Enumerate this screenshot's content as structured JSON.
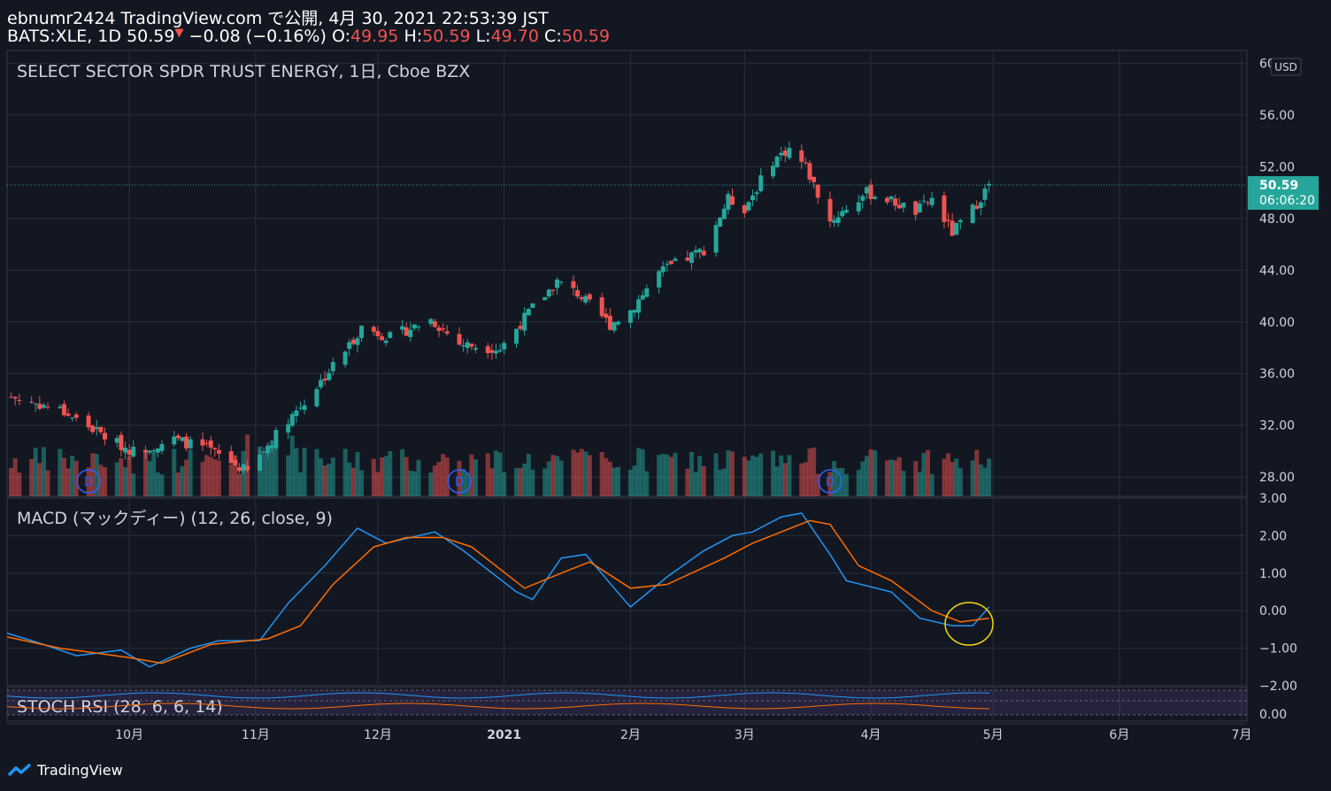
{
  "header": {
    "line1": "ebnumr2424 TradingView.com で公開, 4月 30, 2021 22:53:39 JST",
    "symbol": "BATS:XLE, 1D",
    "last": "50.59",
    "change": "−0.08 (−0.16%)",
    "o_label": "O:",
    "o": "49.95",
    "h_label": "H:",
    "h": "50.59",
    "l_label": "L:",
    "l": "49.70",
    "c_label": "C:",
    "c": "50.59"
  },
  "footer": {
    "brand": "TradingView"
  },
  "colors": {
    "background": "#131722",
    "up": "#26a69a",
    "down": "#ef5350",
    "macd": "#2196f3",
    "signal": "#ff6d00",
    "stoch_k": "#2196f3",
    "stoch_d": "#ff6d00"
  },
  "chart_data": [
    {
      "type": "candlestick",
      "title": "SELECT SECTOR SPDR TRUST ENERGY, 1日, Cboe BZX",
      "currency": "USD",
      "ylim": [
        26.5,
        61
      ],
      "y_ticks": [
        "60.00",
        "56.00",
        "52.00",
        "48.00",
        "44.00",
        "40.00",
        "36.00",
        "32.00",
        "28.00"
      ],
      "x_ticks": [
        "10月",
        "11月",
        "12月",
        "2021",
        "2月",
        "3月",
        "4月",
        "5月",
        "6月",
        "7月"
      ],
      "last_price_label": "50.59",
      "countdown_label": "06:06:20",
      "dividend_markers": [
        "D",
        "D",
        "D"
      ],
      "price_anchors": [
        [
          "2020-09-02",
          34.2
        ],
        [
          "2020-09-14",
          33.2
        ],
        [
          "2020-09-28",
          30.6
        ],
        [
          "2020-10-02",
          30.0
        ],
        [
          "2020-10-12",
          30.9
        ],
        [
          "2020-10-20",
          30.2
        ],
        [
          "2020-10-30",
          28.4
        ],
        [
          "2020-11-09",
          32.5
        ],
        [
          "2020-11-13",
          33.8
        ],
        [
          "2020-11-24",
          38.2
        ],
        [
          "2020-11-27",
          39.6
        ],
        [
          "2020-12-04",
          38.8
        ],
        [
          "2020-12-14",
          40.2
        ],
        [
          "2020-12-21",
          38.3
        ],
        [
          "2020-12-31",
          37.9
        ],
        [
          "2021-01-08",
          41.1
        ],
        [
          "2021-01-14",
          43.1
        ],
        [
          "2021-01-19",
          42.2
        ],
        [
          "2021-01-27",
          39.8
        ],
        [
          "2021-02-01",
          40.9
        ],
        [
          "2021-02-08",
          43.8
        ],
        [
          "2021-02-19",
          45.6
        ],
        [
          "2021-02-25",
          49.5
        ],
        [
          "2021-03-01",
          48.8
        ],
        [
          "2021-03-08",
          52.5
        ],
        [
          "2021-03-12",
          53.4
        ],
        [
          "2021-03-16",
          52.0
        ],
        [
          "2021-03-22",
          47.8
        ],
        [
          "2021-03-31",
          50.0
        ],
        [
          "2021-04-05",
          49.5
        ],
        [
          "2021-04-12",
          48.5
        ],
        [
          "2021-04-16",
          49.5
        ],
        [
          "2021-04-21",
          46.9
        ],
        [
          "2021-04-26",
          48.7
        ],
        [
          "2021-04-30",
          50.59
        ]
      ]
    },
    {
      "type": "line",
      "title": "MACD (マックディー) (12, 26, close, 9)",
      "ylim": [
        -2.0,
        3.0
      ],
      "y_ticks": [
        "3.00",
        "2.00",
        "1.00",
        "0.00",
        "−1.00",
        "−2.00"
      ],
      "series": [
        {
          "name": "MACD",
          "color": "#2196f3",
          "values": [
            [
              "2020-09-01",
              -0.6
            ],
            [
              "2020-09-10",
              -0.9
            ],
            [
              "2020-09-18",
              -1.2
            ],
            [
              "2020-09-29",
              -1.05
            ],
            [
              "2020-10-06",
              -1.5
            ],
            [
              "2020-10-16",
              -1.0
            ],
            [
              "2020-10-23",
              -0.8
            ],
            [
              "2020-11-02",
              -0.8
            ],
            [
              "2020-11-09",
              0.2
            ],
            [
              "2020-11-18",
              1.2
            ],
            [
              "2020-11-26",
              2.2
            ],
            [
              "2020-12-03",
              1.8
            ],
            [
              "2020-12-15",
              2.1
            ],
            [
              "2020-12-22",
              1.6
            ],
            [
              "2021-01-04",
              0.5
            ],
            [
              "2021-01-08",
              0.3
            ],
            [
              "2021-01-15",
              1.4
            ],
            [
              "2021-01-21",
              1.5
            ],
            [
              "2021-01-28",
              0.6
            ],
            [
              "2021-02-01",
              0.1
            ],
            [
              "2021-02-10",
              0.9
            ],
            [
              "2021-02-19",
              1.6
            ],
            [
              "2021-02-26",
              2.0
            ],
            [
              "2021-03-03",
              2.1
            ],
            [
              "2021-03-10",
              2.5
            ],
            [
              "2021-03-15",
              2.6
            ],
            [
              "2021-03-22",
              1.5
            ],
            [
              "2021-03-26",
              0.8
            ],
            [
              "2021-04-06",
              0.5
            ],
            [
              "2021-04-13",
              -0.2
            ],
            [
              "2021-04-21",
              -0.4
            ],
            [
              "2021-04-26",
              -0.4
            ],
            [
              "2021-04-30",
              0.1
            ]
          ]
        },
        {
          "name": "Signal",
          "color": "#ff6d00",
          "values": [
            [
              "2020-09-01",
              -0.7
            ],
            [
              "2020-09-14",
              -1.0
            ],
            [
              "2020-10-01",
              -1.25
            ],
            [
              "2020-10-09",
              -1.4
            ],
            [
              "2020-10-21",
              -0.9
            ],
            [
              "2020-11-04",
              -0.75
            ],
            [
              "2020-11-12",
              -0.4
            ],
            [
              "2020-11-20",
              0.7
            ],
            [
              "2020-11-30",
              1.7
            ],
            [
              "2020-12-08",
              1.95
            ],
            [
              "2020-12-17",
              1.95
            ],
            [
              "2020-12-24",
              1.7
            ],
            [
              "2021-01-06",
              0.6
            ],
            [
              "2021-01-15",
              1.0
            ],
            [
              "2021-01-22",
              1.3
            ],
            [
              "2021-02-01",
              0.6
            ],
            [
              "2021-02-10",
              0.7
            ],
            [
              "2021-02-24",
              1.4
            ],
            [
              "2021-03-03",
              1.8
            ],
            [
              "2021-03-10",
              2.1
            ],
            [
              "2021-03-17",
              2.4
            ],
            [
              "2021-03-22",
              2.3
            ],
            [
              "2021-03-29",
              1.2
            ],
            [
              "2021-04-06",
              0.8
            ],
            [
              "2021-04-16",
              0.0
            ],
            [
              "2021-04-23",
              -0.3
            ],
            [
              "2021-04-30",
              -0.2
            ]
          ]
        }
      ],
      "annotation": "yellow-circle-crossover"
    },
    {
      "type": "line",
      "title": "STOCH RSI (28, 6, 6, 14)",
      "y_ticks": [
        "0.00"
      ],
      "series": [
        {
          "name": "K",
          "color": "#2196f3"
        },
        {
          "name": "D",
          "color": "#ff6d00"
        }
      ]
    }
  ]
}
